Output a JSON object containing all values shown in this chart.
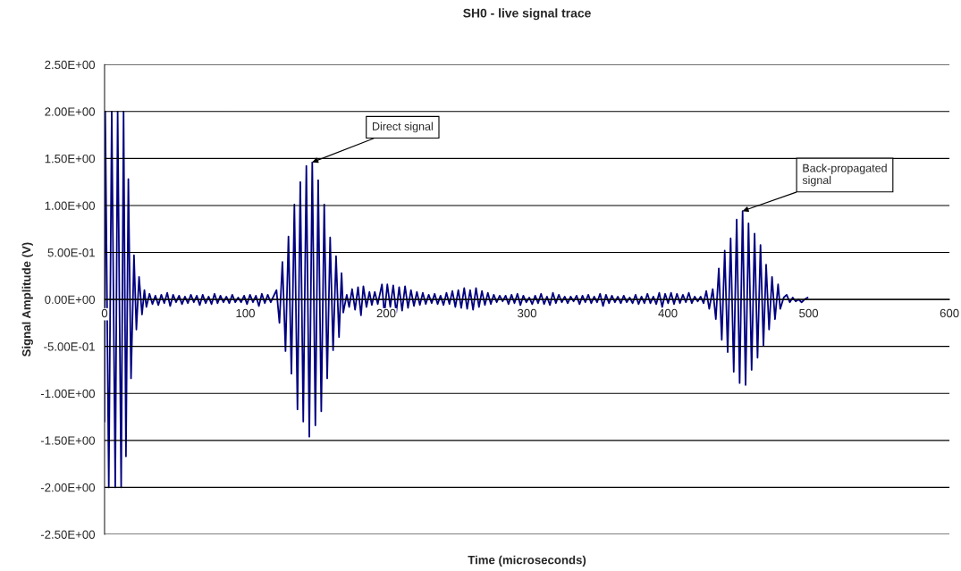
{
  "chart_data": {
    "type": "line",
    "title": "SH0 - live signal trace",
    "xlabel": "Time (microseconds)",
    "ylabel": "Signal Amplitude (V)",
    "series": [
      {
        "color": "#000080",
        "x": [
          0,
          0.5,
          3.0,
          5.1,
          7.6,
          9.3,
          11.8,
          13.5,
          15.2,
          16.9,
          18.8,
          20.9,
          22.6,
          24.5,
          26.6,
          28.3,
          29.7,
          31.9,
          34.0,
          36.1,
          38.2,
          40.3,
          42.4,
          44.5,
          46.6,
          48.7,
          50.8,
          52.9,
          55.0,
          57.1,
          59.2,
          61.3,
          63.4,
          65.5,
          67.6,
          69.7,
          71.8,
          73.9,
          76.0,
          78.1,
          80.2,
          82.3,
          84.4,
          86.5,
          88.6,
          90.7,
          92.8,
          94.9,
          97.0,
          99.1,
          101.2,
          103.3,
          105.4,
          107.5,
          109.6,
          111.7,
          113.8,
          115.9,
          118.0,
          122.1,
          124.2,
          126.3,
          128.5,
          130.6,
          132.7,
          134.8,
          137.0,
          139.0,
          141.1,
          143.3,
          145.4,
          147.5,
          149.7,
          151.7,
          153.9,
          156.0,
          158.1,
          160.2,
          162.3,
          164.4,
          166.5,
          168.3,
          169.5,
          172.0,
          173.7,
          175.8,
          177.9,
          180.0,
          182.1,
          183.8,
          186.0,
          188.1,
          189.8,
          191.9,
          194.0,
          197.0,
          198.7,
          200.8,
          202.9,
          205.0,
          207.1,
          209.2,
          211.3,
          213.4,
          215.5,
          217.6,
          219.7,
          221.8,
          223.9,
          226.0,
          228.1,
          230.2,
          232.3,
          234.4,
          236.5,
          238.6,
          240.7,
          242.8,
          244.9,
          247.0,
          249.1,
          251.2,
          253.3,
          255.4,
          257.5,
          259.6,
          261.7,
          263.8,
          265.9,
          268.0,
          270.1,
          272.2,
          274.3,
          276.4,
          278.5,
          280.6,
          282.7,
          284.8,
          286.9,
          289.0,
          291.1,
          293.2,
          295.3,
          297.4,
          299.5,
          301.6,
          303.7,
          305.8,
          307.9,
          310.0,
          312.1,
          314.2,
          316.3,
          318.4,
          320.5,
          322.6,
          324.7,
          326.8,
          328.9,
          331.0,
          333.1,
          335.2,
          337.3,
          339.4,
          341.4,
          343.5,
          345.6,
          347.7,
          349.8,
          351.9,
          354.0,
          356.1,
          358.2,
          360.3,
          362.4,
          364.5,
          366.6,
          368.7,
          370.8,
          372.9,
          375.0,
          377.1,
          379.2,
          381.3,
          383.4,
          385.5,
          387.6,
          389.7,
          391.8,
          393.9,
          396.0,
          398.1,
          400.2,
          402.3,
          404.4,
          406.5,
          408.6,
          410.7,
          412.8,
          414.9,
          417.0,
          419.1,
          421.2,
          423.3,
          425.4,
          427.3,
          429.4,
          431.9,
          434.1,
          436.2,
          438.3,
          440.4,
          442.5,
          444.6,
          446.8,
          448.9,
          451.0,
          453.1,
          455.2,
          457.3,
          459.5,
          461.6,
          463.7,
          465.8,
          467.9,
          469.8,
          471.9,
          474.0,
          476.1,
          478.3,
          479.8,
          482.3,
          484.4,
          486.6,
          488.7,
          490.8,
          492.9,
          495.0,
          497.1,
          499.3
        ],
        "values": [
          -1.3,
          2.0,
          -2.0,
          2.0,
          -2.0,
          2.0,
          -2.0,
          2.0,
          -1.67,
          1.28,
          -0.84,
          0.47,
          -0.32,
          0.24,
          -0.16,
          0.1,
          -0.08,
          0.06,
          -0.05,
          0.04,
          -0.06,
          0.05,
          -0.04,
          0.07,
          -0.07,
          0.05,
          -0.03,
          0.04,
          -0.05,
          0.03,
          -0.04,
          0.05,
          -0.03,
          0.04,
          -0.06,
          0.05,
          -0.04,
          0.03,
          -0.05,
          0.06,
          -0.04,
          0.04,
          -0.03,
          0.03,
          -0.04,
          0.05,
          -0.03,
          0.02,
          -0.03,
          0.04,
          -0.05,
          0.05,
          -0.03,
          0.04,
          -0.07,
          0.06,
          -0.04,
          0.05,
          -0.03,
          0.1,
          -0.25,
          0.4,
          -0.55,
          0.67,
          -0.79,
          1.01,
          -1.17,
          1.25,
          -1.3,
          1.42,
          -1.46,
          1.46,
          -1.34,
          1.27,
          -1.19,
          1.01,
          -0.84,
          0.66,
          -0.54,
          0.46,
          -0.4,
          0.28,
          -0.14,
          0.05,
          -0.08,
          0.11,
          -0.11,
          0.13,
          -0.17,
          0.14,
          -0.08,
          0.08,
          -0.06,
          0.08,
          -0.05,
          0.16,
          -0.16,
          0.16,
          -0.08,
          0.15,
          -0.14,
          0.13,
          -0.12,
          0.14,
          -0.09,
          0.1,
          -0.07,
          0.08,
          -0.06,
          0.07,
          -0.05,
          0.05,
          -0.04,
          0.06,
          -0.05,
          0.04,
          -0.06,
          0.07,
          -0.05,
          0.09,
          -0.08,
          0.1,
          -0.09,
          0.12,
          -0.1,
          0.1,
          -0.11,
          0.12,
          -0.08,
          0.09,
          -0.06,
          0.07,
          -0.05,
          0.05,
          -0.03,
          0.04,
          -0.02,
          0.04,
          -0.05,
          0.05,
          -0.04,
          0.06,
          -0.06,
          0.04,
          -0.03,
          0.02,
          -0.05,
          0.04,
          -0.04,
          0.06,
          -0.05,
          0.03,
          -0.06,
          0.07,
          -0.04,
          0.05,
          -0.03,
          0.03,
          -0.04,
          0.03,
          -0.02,
          0.04,
          -0.05,
          0.04,
          -0.03,
          0.05,
          -0.04,
          0.03,
          -0.03,
          0.06,
          -0.07,
          0.05,
          -0.04,
          0.04,
          -0.03,
          0.03,
          -0.04,
          0.04,
          -0.03,
          0.02,
          -0.04,
          0.05,
          -0.05,
          0.03,
          -0.04,
          0.06,
          -0.04,
          0.03,
          -0.05,
          0.07,
          -0.08,
          0.06,
          -0.04,
          0.07,
          -0.05,
          0.06,
          -0.04,
          0.05,
          -0.03,
          0.07,
          -0.04,
          0.03,
          -0.02,
          0.03,
          -0.04,
          0.09,
          -0.1,
          0.11,
          -0.21,
          0.33,
          -0.43,
          0.52,
          -0.56,
          0.65,
          -0.77,
          0.85,
          -0.89,
          0.94,
          -0.91,
          0.81,
          -0.75,
          0.7,
          -0.62,
          0.58,
          -0.49,
          0.37,
          -0.32,
          0.24,
          -0.21,
          0.16,
          -0.1,
          0.02,
          0.05,
          -0.03,
          0.02,
          -0.02,
          0.0,
          -0.03,
          0.0,
          0.02
        ]
      }
    ],
    "xlim": [
      0,
      600
    ],
    "xticks": [
      0,
      100,
      200,
      300,
      400,
      500,
      600
    ],
    "ylim": [
      -2.5,
      2.5
    ],
    "yticks": [
      {
        "value": -2.5,
        "label": "-2.50E+00"
      },
      {
        "value": -2.0,
        "label": "-2.00E+00"
      },
      {
        "value": -1.5,
        "label": "-1.50E+00"
      },
      {
        "value": -1.0,
        "label": "-1.00E+00"
      },
      {
        "value": -0.5,
        "label": "-5.00E-01"
      },
      {
        "value": 0.0,
        "label": "0.00E+00"
      },
      {
        "value": 0.5,
        "label": "5.00E-01"
      },
      {
        "value": 1.0,
        "label": "1.00E+00"
      },
      {
        "value": 1.5,
        "label": "1.50E+00"
      },
      {
        "value": 2.0,
        "label": "2.00E+00"
      },
      {
        "value": 2.5,
        "label": "2.50E+00"
      }
    ],
    "annotations": [
      {
        "text": "Direct signal",
        "x": 147.5,
        "y": 1.46
      },
      {
        "text": "Back-propagated\nsignal",
        "x": 453.1,
        "y": 0.94
      }
    ],
    "grid": "y",
    "marker": "none",
    "line_style": "solid"
  }
}
